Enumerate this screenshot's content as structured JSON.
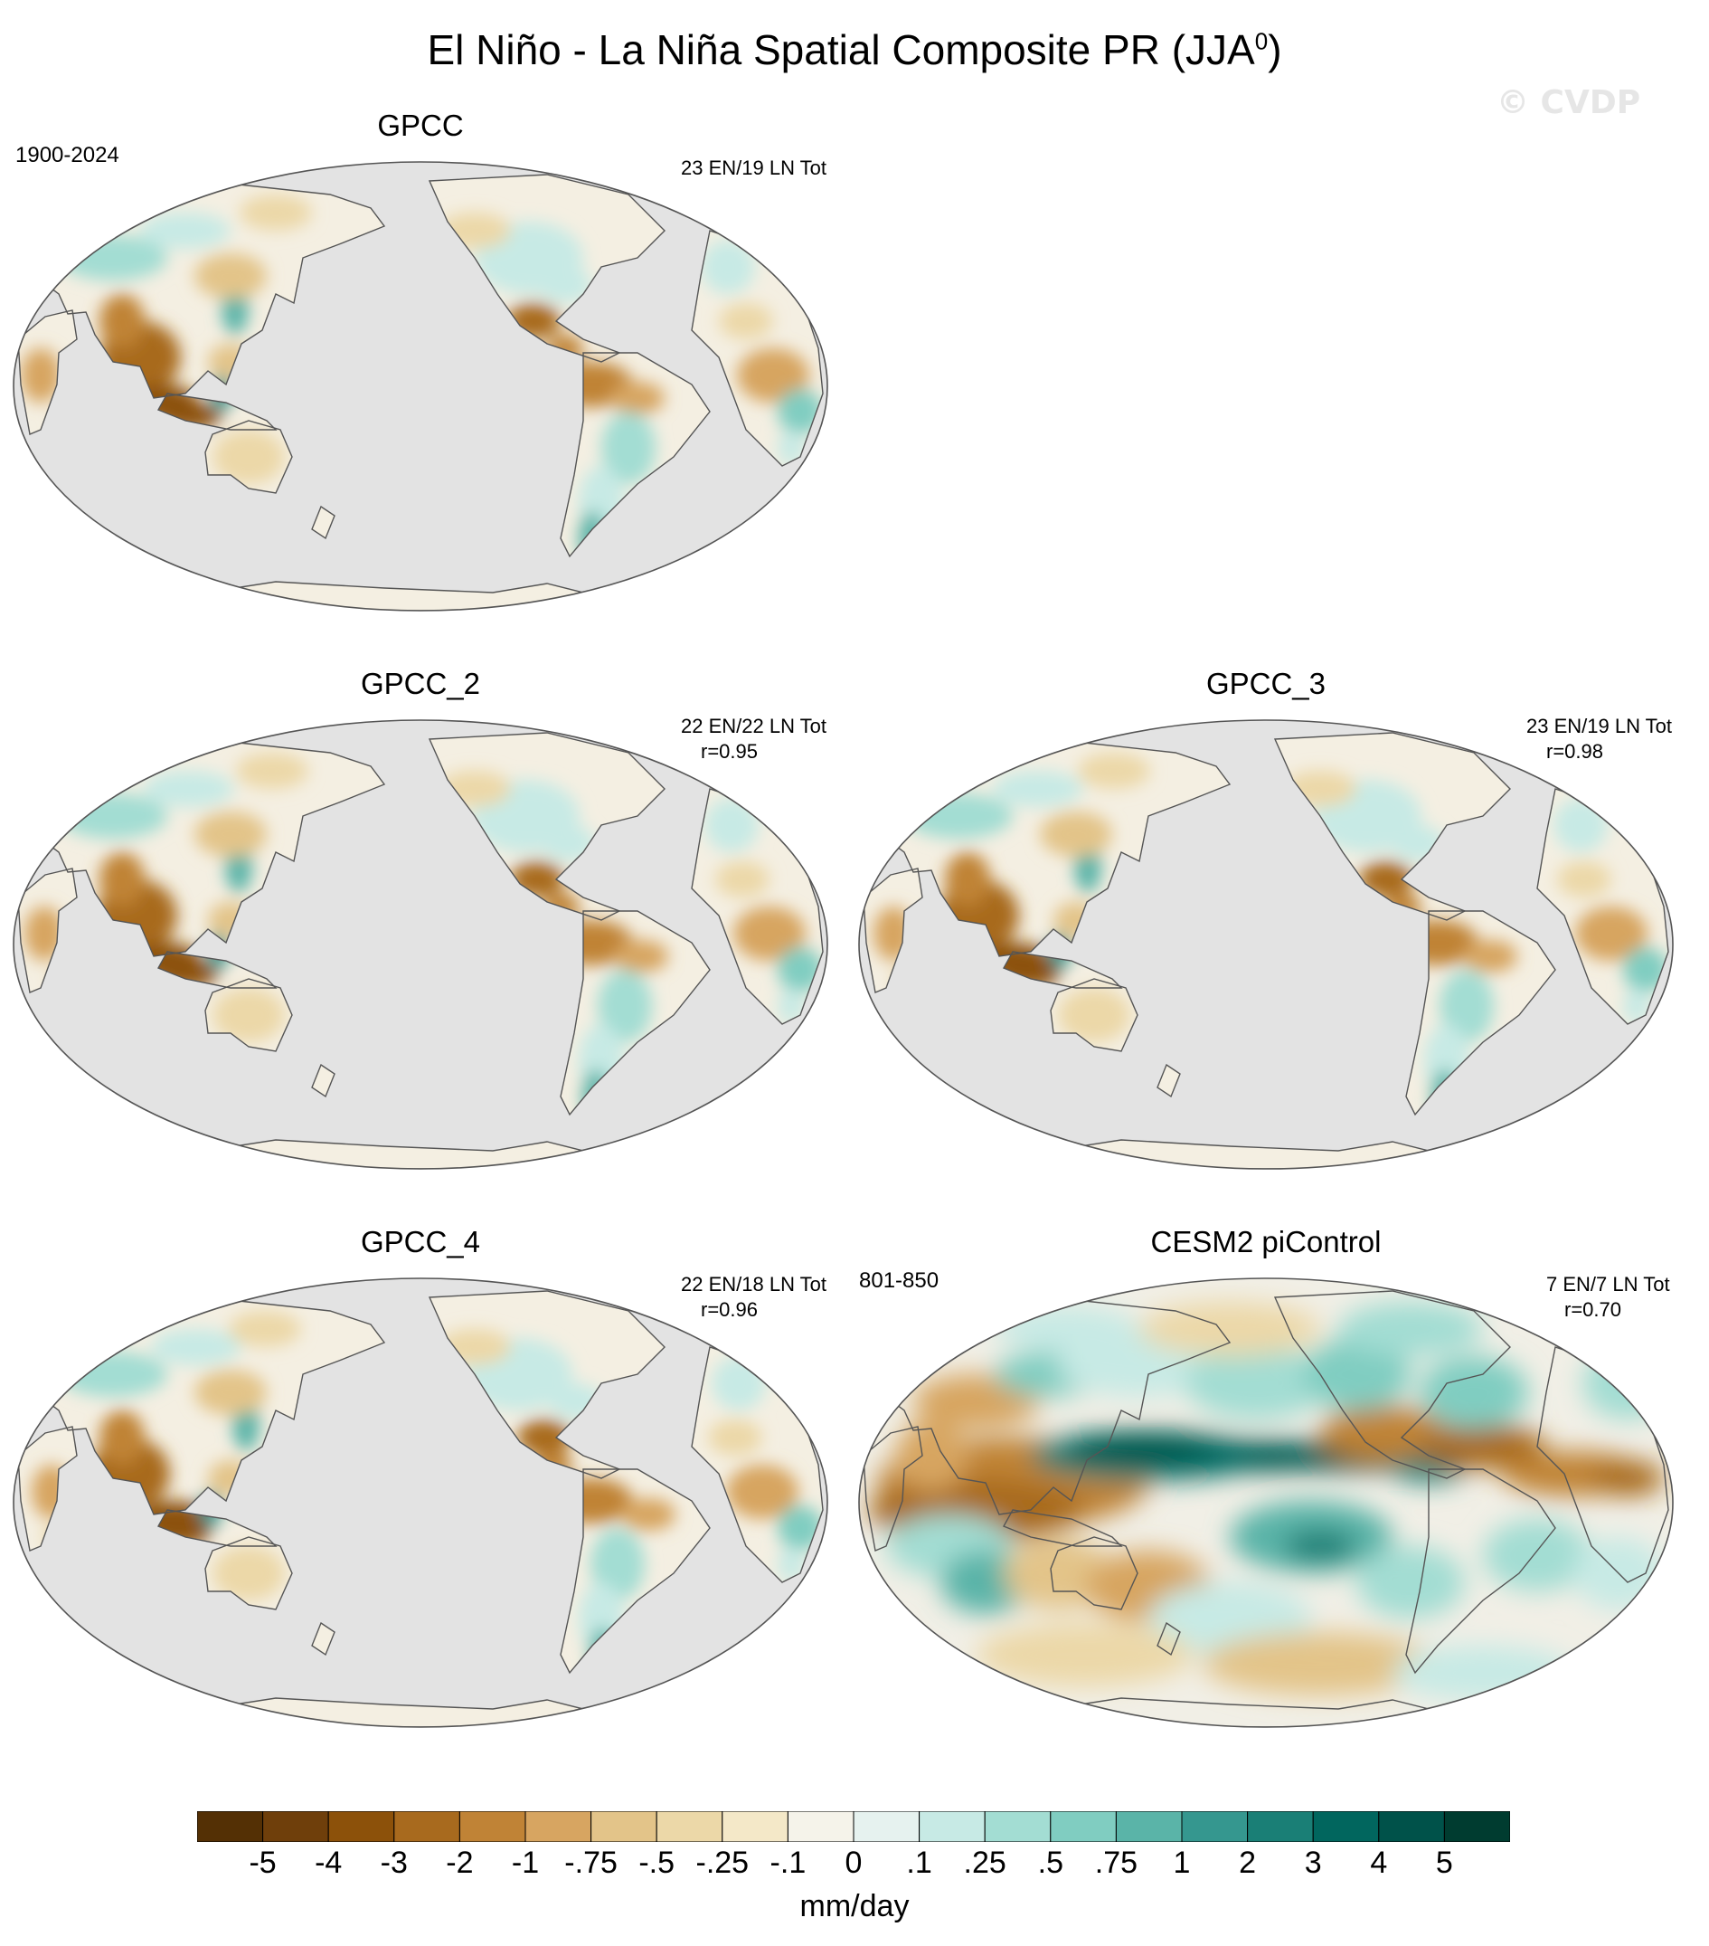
{
  "figure": {
    "title_main": "El Niño - La Niña Spatial Composite PR (JJA",
    "title_sup": "0",
    "title_close": ")",
    "watermark": "© CVDP"
  },
  "panels": [
    {
      "id": "gpcc",
      "title": "GPCC",
      "period": "1900-2024",
      "events": "23 EN/19 LN Tot",
      "corr": "",
      "field": "obs-1"
    },
    {
      "id": "gpcc2",
      "title": "GPCC_2",
      "period": "",
      "events": "22 EN/22 LN Tot",
      "corr": "r=0.95",
      "field": "obs-2"
    },
    {
      "id": "gpcc3",
      "title": "GPCC_3",
      "period": "",
      "events": "23 EN/19 LN Tot",
      "corr": "r=0.98",
      "field": "obs-3"
    },
    {
      "id": "gpcc4",
      "title": "GPCC_4",
      "period": "",
      "events": "22 EN/18 LN Tot",
      "corr": "r=0.96",
      "field": "obs-4"
    },
    {
      "id": "cesm2",
      "title": "CESM2 piControl",
      "period": "801-850",
      "events": "7 EN/7 LN Tot",
      "corr": "r=0.70",
      "field": "model"
    }
  ],
  "colorbar": {
    "labels": [
      "-5",
      "-4",
      "-3",
      "-2",
      "-1",
      "-.75",
      "-.5",
      "-.25",
      "-.1",
      "0",
      ".1",
      ".25",
      ".5",
      ".75",
      "1",
      "2",
      "3",
      "4",
      "5"
    ],
    "colors": [
      "#543005",
      "#6f3f0b",
      "#8c510a",
      "#a86a1e",
      "#c08336",
      "#d7a561",
      "#e3c489",
      "#ecd8a8",
      "#f4e8c8",
      "#f5f3ea",
      "#e6f2ef",
      "#c7eae5",
      "#a3ddd3",
      "#80cdc1",
      "#5ab4a8",
      "#35978f",
      "#1a7f76",
      "#01665e",
      "#00524a",
      "#003c30"
    ],
    "units": "mm/day"
  },
  "map_colors": {
    "ocean": "#e3e3e3",
    "coast": "#555555"
  }
}
